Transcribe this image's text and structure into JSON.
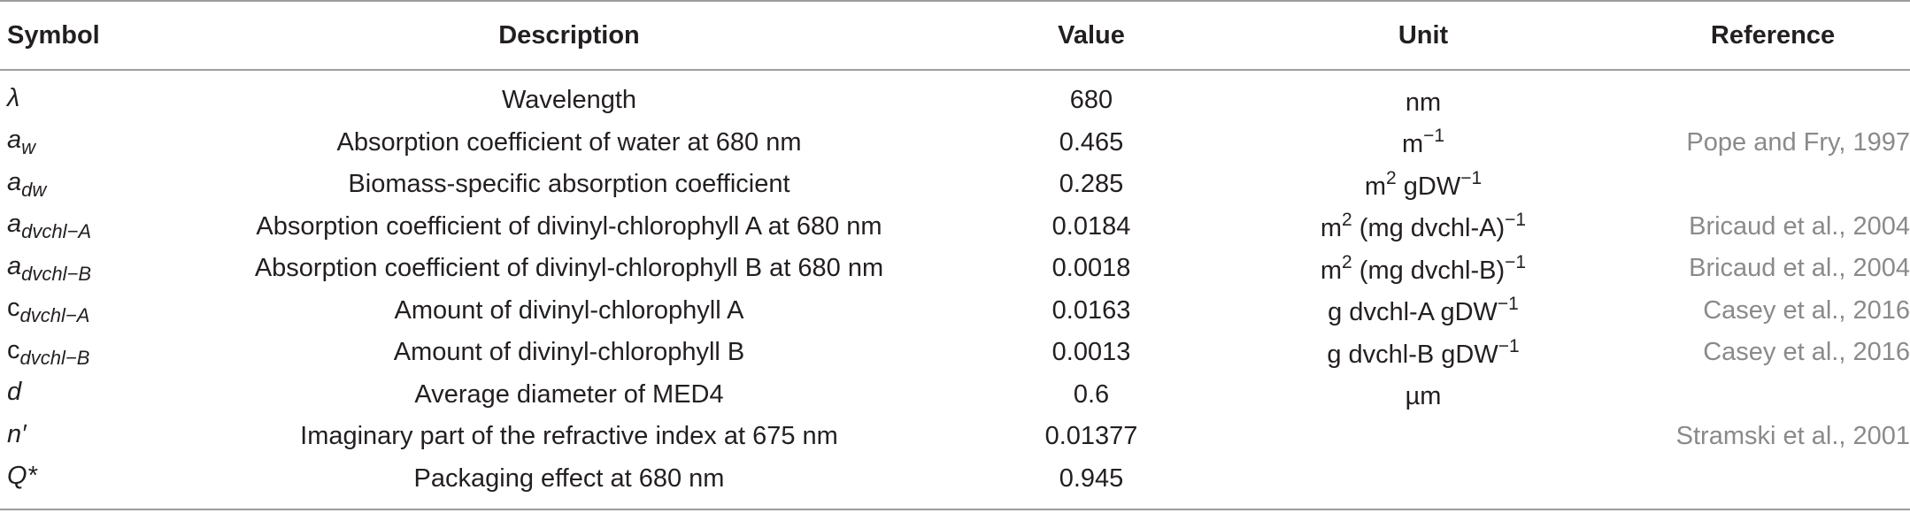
{
  "headers": {
    "symbol": "Symbol",
    "description": "Description",
    "value": "Value",
    "unit": "Unit",
    "reference": "Reference"
  },
  "rows": [
    {
      "sym": "λ",
      "sub": "",
      "upright": true,
      "description": "Wavelength",
      "value": "680",
      "unit_base": "nm",
      "unit_sup": "",
      "unit_tail": "",
      "unit_sup2": "",
      "reference": ""
    },
    {
      "sym": "a",
      "sub": "w",
      "upright": false,
      "description": "Absorption coefficient of water at 680 nm",
      "value": "0.465",
      "unit_base": "m",
      "unit_sup": "−1",
      "unit_tail": "",
      "unit_sup2": "",
      "reference": "Pope and Fry, 1997"
    },
    {
      "sym": "a",
      "sub": "dw",
      "upright": false,
      "description": "Biomass-specific absorption coefficient",
      "value": "0.285",
      "unit_base": "m",
      "unit_sup": "2",
      "unit_tail": " gDW",
      "unit_sup2": "−1",
      "reference": ""
    },
    {
      "sym": "a",
      "sub": "dvchl−A",
      "upright": false,
      "description": "Absorption coefficient of divinyl-chlorophyll A at 680 nm",
      "value": "0.0184",
      "unit_base": "m",
      "unit_sup": "2",
      "unit_tail": " (mg dvchl-A)",
      "unit_sup2": "−1",
      "reference": "Bricaud et al., 2004"
    },
    {
      "sym": "a",
      "sub": "dvchl−B",
      "upright": false,
      "description": "Absorption coefficient of divinyl-chlorophyll B at 680 nm",
      "value": "0.0018",
      "unit_base": "m",
      "unit_sup": "2",
      "unit_tail": " (mg dvchl-B)",
      "unit_sup2": "−1",
      "reference": "Bricaud et al., 2004"
    },
    {
      "sym": "c",
      "sub": "dvchl−A",
      "upright": true,
      "description": "Amount of divinyl-chlorophyll A",
      "value": "0.0163",
      "unit_base": "g dvchl-A gDW",
      "unit_sup": "−1",
      "unit_tail": "",
      "unit_sup2": "",
      "reference": "Casey et al., 2016"
    },
    {
      "sym": "c",
      "sub": "dvchl−B",
      "upright": true,
      "description": "Amount of divinyl-chlorophyll B",
      "value": "0.0013",
      "unit_base": "g dvchl-B gDW",
      "unit_sup": "−1",
      "unit_tail": "",
      "unit_sup2": "",
      "reference": "Casey et al., 2016"
    },
    {
      "sym": "d",
      "sub": "",
      "upright": false,
      "description": "Average diameter of MED4",
      "value": "0.6",
      "unit_base": "µm",
      "unit_sup": "",
      "unit_tail": "",
      "unit_sup2": "",
      "reference": ""
    },
    {
      "sym": "n′",
      "sub": "",
      "upright": false,
      "description": "Imaginary part of the refractive index at 675 nm",
      "value": "0.01377",
      "unit_base": "",
      "unit_sup": "",
      "unit_tail": "",
      "unit_sup2": "",
      "reference": "Stramski et al., 2001"
    },
    {
      "sym": "Q*",
      "sub": "",
      "upright": false,
      "description": "Packaging effect at 680 nm",
      "value": "0.945",
      "unit_base": "",
      "unit_sup": "",
      "unit_tail": "",
      "unit_sup2": "",
      "reference": ""
    }
  ]
}
